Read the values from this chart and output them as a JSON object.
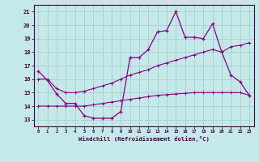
{
  "xlabel": "Windchill (Refroidissement éolien,°C)",
  "xlim": [
    -0.5,
    23.5
  ],
  "ylim": [
    12.5,
    21.5
  ],
  "yticks": [
    13,
    14,
    15,
    16,
    17,
    18,
    19,
    20,
    21
  ],
  "xticks": [
    0,
    1,
    2,
    3,
    4,
    5,
    6,
    7,
    8,
    9,
    10,
    11,
    12,
    13,
    14,
    15,
    16,
    17,
    18,
    19,
    20,
    21,
    22,
    23
  ],
  "background_color": "#c5e8e8",
  "grid_color": "#a8d0d0",
  "line_color": "#880088",
  "hours": [
    0,
    1,
    2,
    3,
    4,
    5,
    6,
    7,
    8,
    9,
    10,
    11,
    12,
    13,
    14,
    15,
    16,
    17,
    18,
    19,
    20,
    21,
    22,
    23
  ],
  "temp_line": [
    16.6,
    15.9,
    14.9,
    14.2,
    14.2,
    13.3,
    13.1,
    13.1,
    13.1,
    13.6,
    17.6,
    17.6,
    18.2,
    19.5,
    19.6,
    21.0,
    19.1,
    19.1,
    19.0,
    20.1,
    18.0,
    16.3,
    15.8,
    14.8
  ],
  "trend1": [
    16.0,
    16.0,
    15.3,
    15.0,
    15.0,
    15.1,
    15.3,
    15.5,
    15.7,
    16.0,
    16.3,
    16.5,
    16.7,
    17.0,
    17.2,
    17.4,
    17.6,
    17.8,
    18.0,
    18.2,
    18.0,
    18.4,
    18.5,
    18.7
  ],
  "trend2": [
    14.0,
    14.0,
    14.0,
    14.0,
    14.0,
    14.0,
    14.1,
    14.2,
    14.3,
    14.4,
    14.5,
    14.6,
    14.7,
    14.8,
    14.85,
    14.9,
    14.95,
    15.0,
    15.0,
    15.0,
    15.0,
    15.0,
    15.0,
    14.8
  ]
}
